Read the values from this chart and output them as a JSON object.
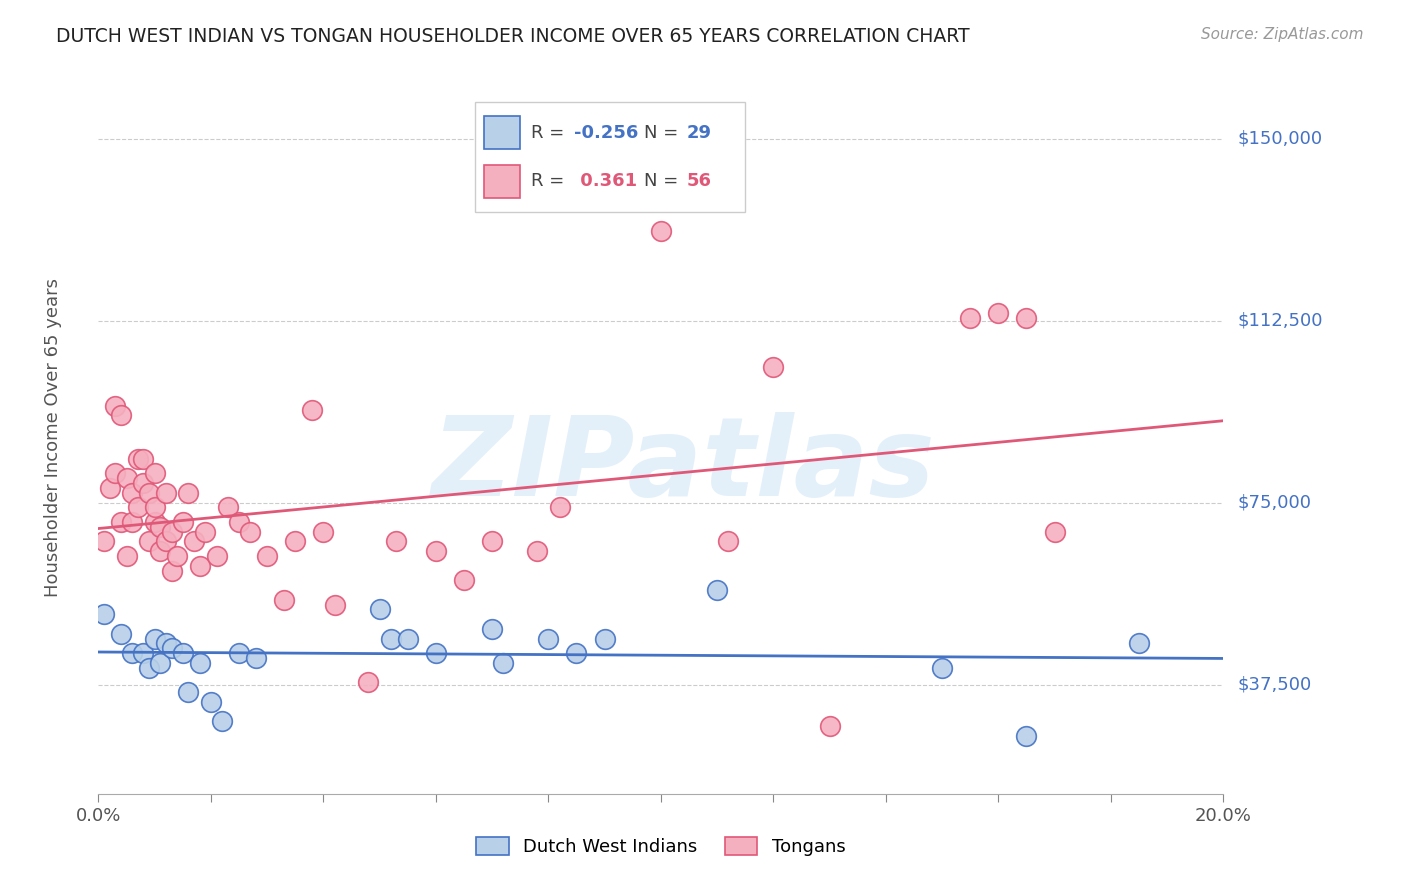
{
  "title": "DUTCH WEST INDIAN VS TONGAN HOUSEHOLDER INCOME OVER 65 YEARS CORRELATION CHART",
  "source": "Source: ZipAtlas.com",
  "ylabel": "Householder Income Over 65 years",
  "watermark": "ZIPatlas",
  "legend_label1": "Dutch West Indians",
  "legend_label2": "Tongans",
  "ytick_labels": [
    "$37,500",
    "$75,000",
    "$112,500",
    "$150,000"
  ],
  "ytick_values": [
    37500,
    75000,
    112500,
    150000
  ],
  "xmin": 0.0,
  "xmax": 0.2,
  "ymin": 15000,
  "ymax": 162000,
  "color_blue": "#b8d0e8",
  "color_pink": "#f5b0c0",
  "color_blue_line": "#4472c4",
  "color_pink_line": "#e05878",
  "color_blue_text": "#4472c4",
  "color_pink_text": "#e05878",
  "blue_scatter_x": [
    0.001,
    0.004,
    0.006,
    0.008,
    0.009,
    0.01,
    0.011,
    0.012,
    0.013,
    0.015,
    0.016,
    0.018,
    0.02,
    0.022,
    0.025,
    0.028,
    0.05,
    0.052,
    0.055,
    0.06,
    0.07,
    0.072,
    0.08,
    0.085,
    0.09,
    0.11,
    0.15,
    0.165,
    0.185
  ],
  "blue_scatter_y": [
    52000,
    48000,
    44000,
    44000,
    41000,
    47000,
    42000,
    46000,
    45000,
    44000,
    36000,
    42000,
    34000,
    30000,
    44000,
    43000,
    53000,
    47000,
    47000,
    44000,
    49000,
    42000,
    47000,
    44000,
    47000,
    57000,
    41000,
    27000,
    46000
  ],
  "pink_scatter_x": [
    0.001,
    0.002,
    0.003,
    0.003,
    0.004,
    0.004,
    0.005,
    0.005,
    0.006,
    0.006,
    0.007,
    0.007,
    0.008,
    0.008,
    0.009,
    0.009,
    0.01,
    0.01,
    0.01,
    0.011,
    0.011,
    0.012,
    0.012,
    0.013,
    0.013,
    0.014,
    0.015,
    0.016,
    0.017,
    0.018,
    0.019,
    0.021,
    0.023,
    0.025,
    0.027,
    0.03,
    0.033,
    0.035,
    0.038,
    0.04,
    0.042,
    0.048,
    0.053,
    0.06,
    0.065,
    0.07,
    0.078,
    0.082,
    0.1,
    0.112,
    0.12,
    0.13,
    0.155,
    0.16,
    0.165,
    0.17
  ],
  "pink_scatter_y": [
    67000,
    78000,
    95000,
    81000,
    93000,
    71000,
    80000,
    64000,
    77000,
    71000,
    84000,
    74000,
    84000,
    79000,
    77000,
    67000,
    81000,
    71000,
    74000,
    65000,
    70000,
    77000,
    67000,
    61000,
    69000,
    64000,
    71000,
    77000,
    67000,
    62000,
    69000,
    64000,
    74000,
    71000,
    69000,
    64000,
    55000,
    67000,
    94000,
    69000,
    54000,
    38000,
    67000,
    65000,
    59000,
    67000,
    65000,
    74000,
    131000,
    67000,
    103000,
    29000,
    113000,
    114000,
    113000,
    69000
  ]
}
